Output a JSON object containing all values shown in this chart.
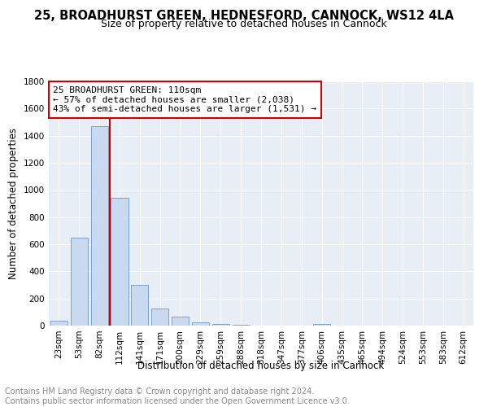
{
  "title1": "25, BROADHURST GREEN, HEDNESFORD, CANNOCK, WS12 4LA",
  "title2": "Size of property relative to detached houses in Cannock",
  "xlabel": "Distribution of detached houses by size in Cannock",
  "ylabel": "Number of detached properties",
  "footer": "Contains HM Land Registry data © Crown copyright and database right 2024.\nContains public sector information licensed under the Open Government Licence v3.0.",
  "bins": [
    "23sqm",
    "53sqm",
    "82sqm",
    "112sqm",
    "141sqm",
    "171sqm",
    "200sqm",
    "229sqm",
    "259sqm",
    "288sqm",
    "318sqm",
    "347sqm",
    "377sqm",
    "406sqm",
    "435sqm",
    "465sqm",
    "494sqm",
    "524sqm",
    "553sqm",
    "583sqm",
    "612sqm"
  ],
  "values": [
    35,
    650,
    1470,
    940,
    300,
    125,
    65,
    25,
    10,
    5,
    2,
    2,
    2,
    15,
    0,
    0,
    0,
    0,
    0,
    0,
    0
  ],
  "bar_color": "#c9d9f0",
  "bar_edge_color": "#7aa3cc",
  "vline_color": "#cc0000",
  "annotation_text": "25 BROADHURST GREEN: 110sqm\n← 57% of detached houses are smaller (2,038)\n43% of semi-detached houses are larger (1,531) →",
  "annotation_box_color": "#ffffff",
  "annotation_box_edge_color": "#cc0000",
  "ylim": [
    0,
    1800
  ],
  "yticks": [
    0,
    200,
    400,
    600,
    800,
    1000,
    1200,
    1400,
    1600,
    1800
  ],
  "background_color": "#e8eef6",
  "title1_fontsize": 10.5,
  "title2_fontsize": 9,
  "axis_label_fontsize": 8.5,
  "tick_fontsize": 7.5,
  "annotation_fontsize": 8,
  "footer_fontsize": 7
}
